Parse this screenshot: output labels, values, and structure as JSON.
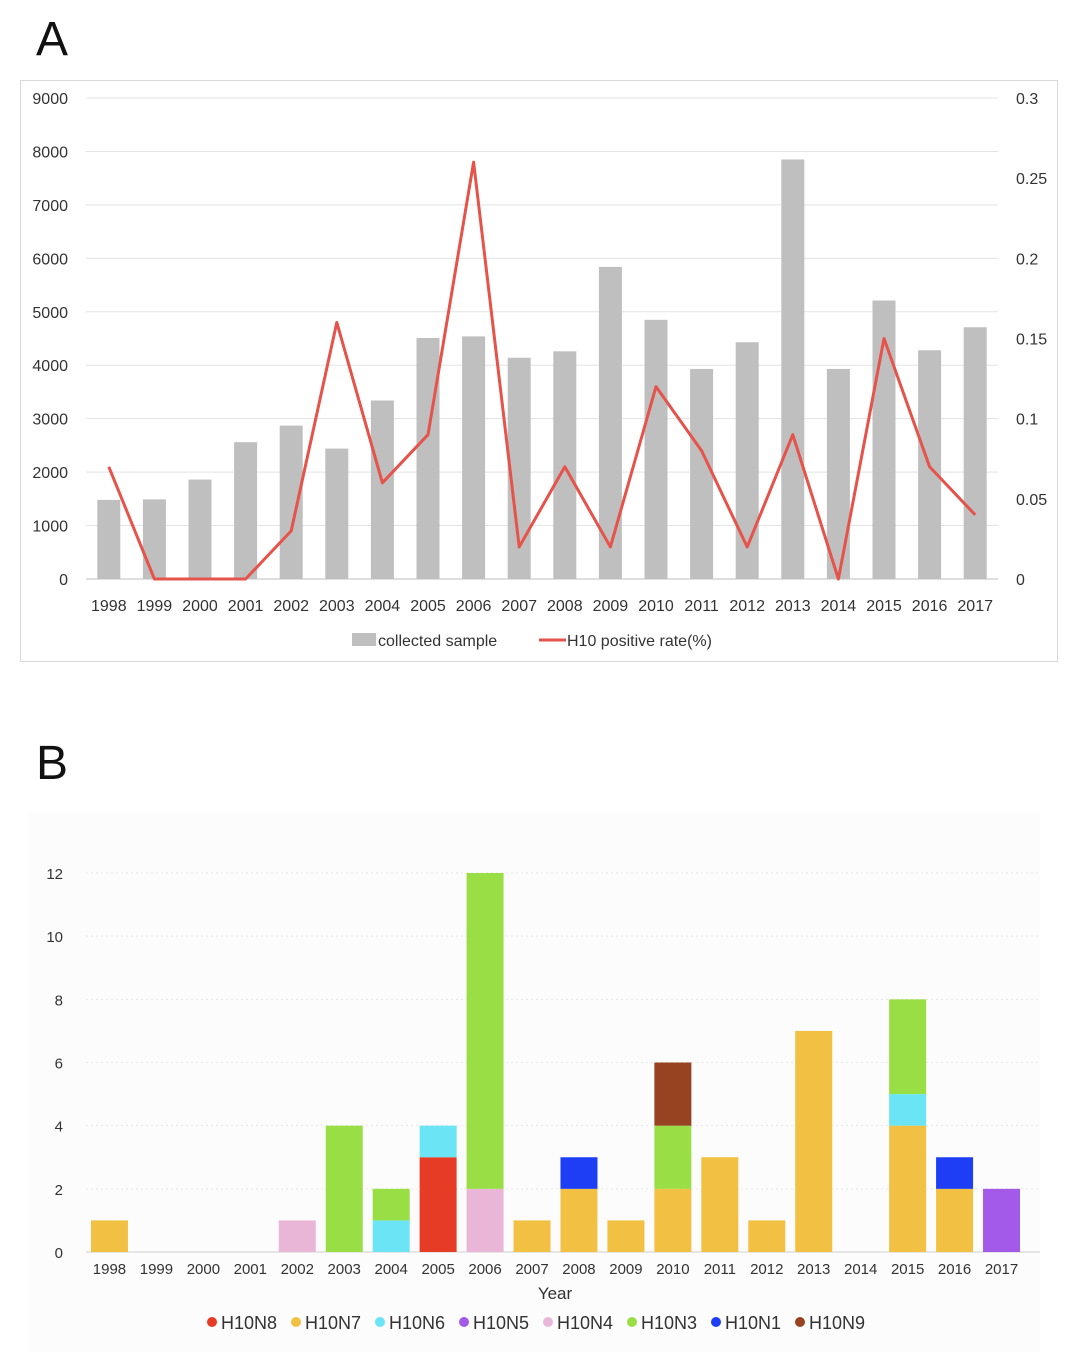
{
  "panels": {
    "a_label": "A",
    "b_label": "B"
  },
  "chart_data": [
    {
      "type": "bar",
      "panel": "A",
      "categories": [
        "1998",
        "1999",
        "2000",
        "2001",
        "2002",
        "2003",
        "2004",
        "2005",
        "2006",
        "2007",
        "2008",
        "2009",
        "2010",
        "2011",
        "2012",
        "2013",
        "2014",
        "2015",
        "2016",
        "2017"
      ],
      "series": [
        {
          "name": "collected sample",
          "type": "bar",
          "axis": "left",
          "color": "#bfbfbf",
          "values": [
            1480,
            1490,
            1860,
            2560,
            2870,
            2440,
            3340,
            4510,
            4540,
            4140,
            4260,
            5840,
            4850,
            3930,
            4430,
            7850,
            3930,
            5210,
            4280,
            4710
          ]
        },
        {
          "name": "H10 positive rate(%)",
          "type": "line",
          "axis": "right",
          "color": "#e5534b",
          "values": [
            0.07,
            0,
            0,
            0,
            0.03,
            0.16,
            0.06,
            0.09,
            0.26,
            0.02,
            0.07,
            0.02,
            0.12,
            0.08,
            0.02,
            0.09,
            0,
            0.15,
            0.07,
            0.04
          ]
        }
      ],
      "ylim": [
        0,
        9000
      ],
      "yticks": [
        "0",
        "1000",
        "2000",
        "3000",
        "4000",
        "5000",
        "6000",
        "7000",
        "8000",
        "9000"
      ],
      "y2lim": [
        0,
        0.3
      ],
      "y2ticks": [
        "0",
        "0.05",
        "0.1",
        "0.15",
        "0.2",
        "0.25",
        "0.3"
      ],
      "legend": [
        "collected sample",
        "H10 positive rate(%)"
      ],
      "legend_position": "bottom"
    },
    {
      "type": "bar",
      "stacked": true,
      "panel": "B",
      "categories": [
        "1998",
        "1999",
        "2000",
        "2001",
        "2002",
        "2003",
        "2004",
        "2005",
        "2006",
        "2007",
        "2008",
        "2009",
        "2010",
        "2011",
        "2012",
        "2013",
        "2014",
        "2015",
        "2016",
        "2017"
      ],
      "xlabel": "Year",
      "ylim": [
        0,
        12
      ],
      "yticks": [
        "0",
        "2",
        "4",
        "6",
        "8",
        "10",
        "12"
      ],
      "series": [
        {
          "name": "H10N8",
          "color": "#e63b25",
          "values": [
            0,
            0,
            0,
            0,
            0,
            0,
            0,
            3,
            0,
            0,
            0,
            0,
            0,
            0,
            0,
            0,
            0,
            0,
            0,
            0
          ]
        },
        {
          "name": "H10N7",
          "color": "#f2c043",
          "values": [
            1,
            0,
            0,
            0,
            0,
            0,
            0,
            0,
            0,
            1,
            2,
            1,
            2,
            3,
            1,
            7,
            0,
            4,
            2,
            0
          ]
        },
        {
          "name": "H10N6",
          "color": "#6be4f5",
          "values": [
            0,
            0,
            0,
            0,
            0,
            0,
            1,
            1,
            0,
            0,
            0,
            0,
            0,
            0,
            0,
            0,
            0,
            1,
            0,
            0
          ]
        },
        {
          "name": "H10N5",
          "color": "#a45ae8",
          "values": [
            0,
            0,
            0,
            0,
            0,
            0,
            0,
            0,
            0,
            0,
            0,
            0,
            0,
            0,
            0,
            0,
            0,
            0,
            0,
            2
          ]
        },
        {
          "name": "H10N4",
          "color": "#e9b6d8",
          "values": [
            0,
            0,
            0,
            0,
            1,
            0,
            0,
            0,
            2,
            0,
            0,
            0,
            0,
            0,
            0,
            0,
            0,
            0,
            0,
            0
          ]
        },
        {
          "name": "H10N3",
          "color": "#9ade45",
          "values": [
            0,
            0,
            0,
            0,
            0,
            4,
            1,
            0,
            10,
            0,
            0,
            0,
            2,
            0,
            0,
            0,
            0,
            3,
            0,
            0
          ]
        },
        {
          "name": "H10N1",
          "color": "#1e3ef5",
          "values": [
            0,
            0,
            0,
            0,
            0,
            0,
            0,
            0,
            0,
            0,
            1,
            0,
            0,
            0,
            0,
            0,
            0,
            0,
            1,
            0
          ]
        },
        {
          "name": "H10N9",
          "color": "#974321",
          "values": [
            0,
            0,
            0,
            0,
            0,
            0,
            0,
            0,
            0,
            0,
            0,
            0,
            2,
            0,
            0,
            0,
            0,
            0,
            0,
            0
          ]
        }
      ],
      "legend": [
        "H10N8",
        "H10N7",
        "H10N6",
        "H10N5",
        "H10N4",
        "H10N3",
        "H10N1",
        "H10N9"
      ],
      "legend_position": "bottom"
    }
  ]
}
